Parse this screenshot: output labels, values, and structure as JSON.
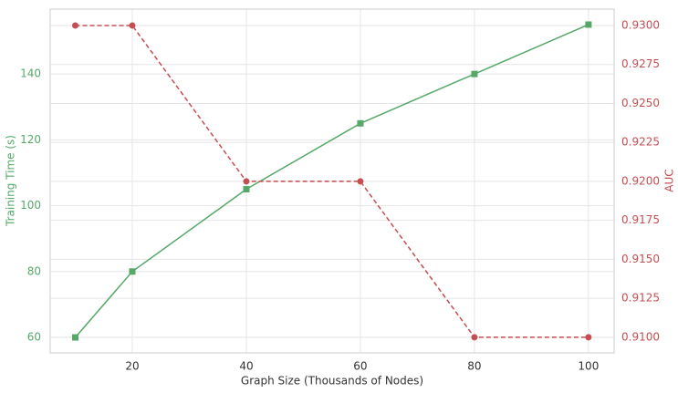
{
  "chart_data": {
    "type": "line",
    "xlabel": "Graph Size (Thousands of Nodes)",
    "ylabel": "Training Time (s)",
    "y2label": "AUC",
    "x": [
      10,
      20,
      40,
      60,
      80,
      100
    ],
    "xlim": [
      5.6,
      104.5
    ],
    "xticks": [
      20,
      40,
      60,
      80,
      100
    ],
    "ylim": [
      55.3,
      159.7
    ],
    "yticks": [
      60,
      80,
      100,
      120,
      140
    ],
    "y2lim": [
      0.909,
      0.93105
    ],
    "y2ticks": [
      {
        "value": 0.91,
        "label": "0.9100"
      },
      {
        "value": 0.9125,
        "label": "0.9125"
      },
      {
        "value": 0.915,
        "label": "0.9150"
      },
      {
        "value": 0.9175,
        "label": "0.9175"
      },
      {
        "value": 0.92,
        "label": "0.9200"
      },
      {
        "value": 0.9225,
        "label": "0.9225"
      },
      {
        "value": 0.925,
        "label": "0.9250"
      },
      {
        "value": 0.9275,
        "label": "0.9275"
      },
      {
        "value": 0.93,
        "label": "0.9300"
      }
    ],
    "grid": true,
    "series": [
      {
        "name": "Training Time (s)",
        "color": "#55a868",
        "marker": "square",
        "linestyle": "solid",
        "values": [
          60,
          80,
          105,
          125,
          140,
          155
        ]
      },
      {
        "name": "AUC",
        "color": "#c44e52",
        "marker": "circle",
        "linestyle": "dashed",
        "axis": "y2",
        "values": [
          0.93,
          0.93,
          0.92,
          0.92,
          0.91,
          0.91
        ]
      }
    ]
  }
}
